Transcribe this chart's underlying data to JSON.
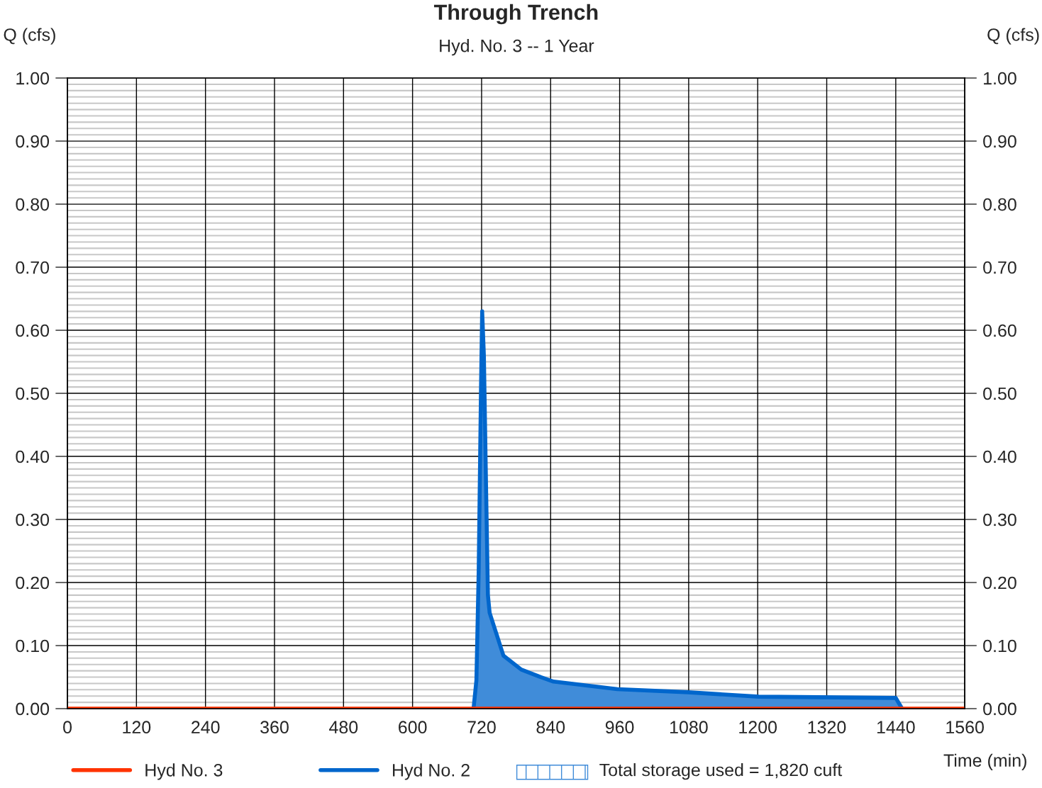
{
  "chart_data": {
    "type": "line",
    "title": "Through Trench",
    "subtitle": "Hyd. No. 3 -- 1 Year",
    "xlabel": "Time (min)",
    "ylabel": "Q (cfs)",
    "y2label": "Q (cfs)",
    "annotations": [
      "Total storage used = 1,820 cuft"
    ],
    "xlim": [
      0,
      1560
    ],
    "xticks": [
      0,
      120,
      240,
      360,
      480,
      600,
      720,
      840,
      960,
      1080,
      1200,
      1320,
      1440,
      1560
    ],
    "ylim": [
      0,
      1.0
    ],
    "yticks": [
      {
        "value": 0,
        "label": "0.00"
      },
      {
        "value": 0.1,
        "label": "0.10"
      },
      {
        "value": 0.2,
        "label": "0.20"
      },
      {
        "value": 0.3,
        "label": "0.30"
      },
      {
        "value": 0.4,
        "label": "0.40"
      },
      {
        "value": 0.5,
        "label": "0.50"
      },
      {
        "value": 0.6,
        "label": "0.60"
      },
      {
        "value": 0.7,
        "label": "0.70"
      },
      {
        "value": 0.8,
        "label": "0.80"
      },
      {
        "value": 0.9,
        "label": "0.90"
      },
      {
        "value": 1.0,
        "label": "1.00"
      }
    ],
    "y2lim": [
      0,
      1.0
    ],
    "y2ticks": [
      {
        "value": 0,
        "label": "0.00"
      },
      {
        "value": 0.1,
        "label": "0.10"
      },
      {
        "value": 0.2,
        "label": "0.20"
      },
      {
        "value": 0.3,
        "label": "0.30"
      },
      {
        "value": 0.4,
        "label": "0.40"
      },
      {
        "value": 0.5,
        "label": "0.50"
      },
      {
        "value": 0.6,
        "label": "0.60"
      },
      {
        "value": 0.7,
        "label": "0.70"
      },
      {
        "value": 0.8,
        "label": "0.80"
      },
      {
        "value": 0.9,
        "label": "0.90"
      },
      {
        "value": 1.0,
        "label": "1.00"
      }
    ],
    "grid": true,
    "legend": "bottom",
    "marker": "none",
    "line_style": "solid",
    "series": [
      {
        "name": "Hyd No. 3",
        "color": "#ff3300",
        "x": [
          0,
          1560
        ],
        "values": [
          0,
          0
        ]
      },
      {
        "name": "Hyd No. 2",
        "type": "area",
        "color": "#0066cc",
        "x": [
          706,
          711,
          715,
          719,
          721,
          724,
          728,
          731,
          734,
          746,
          758,
          789,
          820,
          845,
          956,
          1079,
          1202,
          1440,
          1451
        ],
        "values": [
          0,
          0.045,
          0.22,
          0.51,
          0.63,
          0.56,
          0.34,
          0.18,
          0.152,
          0.118,
          0.084,
          0.062,
          0.051,
          0.043,
          0.031,
          0.026,
          0.019,
          0.017,
          0
        ]
      }
    ]
  }
}
